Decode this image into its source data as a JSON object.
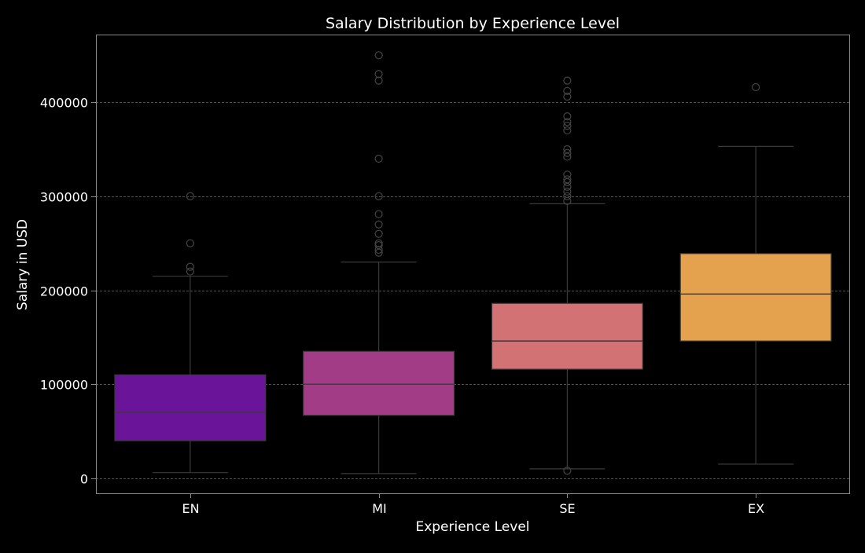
{
  "chart_data": {
    "type": "box",
    "title": "Salary Distribution by Experience Level",
    "xlabel": "Experience Level",
    "ylabel": "Salary in USD",
    "ylim": [
      -16000,
      472000
    ],
    "yticks": [
      0,
      100000,
      200000,
      300000,
      400000
    ],
    "grid": true,
    "categories": [
      "EN",
      "MI",
      "SE",
      "EX"
    ],
    "colors": [
      "#6A1499",
      "#A23C86",
      "#D27274",
      "#E4A24E"
    ],
    "boxes": [
      {
        "category": "EN",
        "whisker_low": 6000,
        "q1": 40000,
        "median": 70000,
        "q3": 110000,
        "whisker_high": 215000,
        "outliers": [
          220000,
          225000,
          250000,
          300000
        ]
      },
      {
        "category": "MI",
        "whisker_low": 5000,
        "q1": 67000,
        "median": 100000,
        "q3": 135000,
        "whisker_high": 230000,
        "outliers": [
          240000,
          243000,
          248000,
          250000,
          260000,
          270000,
          281000,
          300000,
          340000,
          423000,
          430000,
          450000
        ]
      },
      {
        "category": "SE",
        "whisker_low": 10000,
        "q1": 116000,
        "median": 146000,
        "q3": 186000,
        "whisker_high": 292000,
        "outliers": [
          8000,
          295000,
          300000,
          305000,
          310000,
          315000,
          318000,
          323000,
          342000,
          346000,
          350000,
          370000,
          375000,
          379000,
          385000,
          406000,
          412000,
          423000
        ]
      },
      {
        "category": "EX",
        "whisker_low": 15000,
        "q1": 146000,
        "median": 196000,
        "q3": 239000,
        "whisker_high": 353000,
        "outliers": [
          416000
        ]
      }
    ]
  }
}
